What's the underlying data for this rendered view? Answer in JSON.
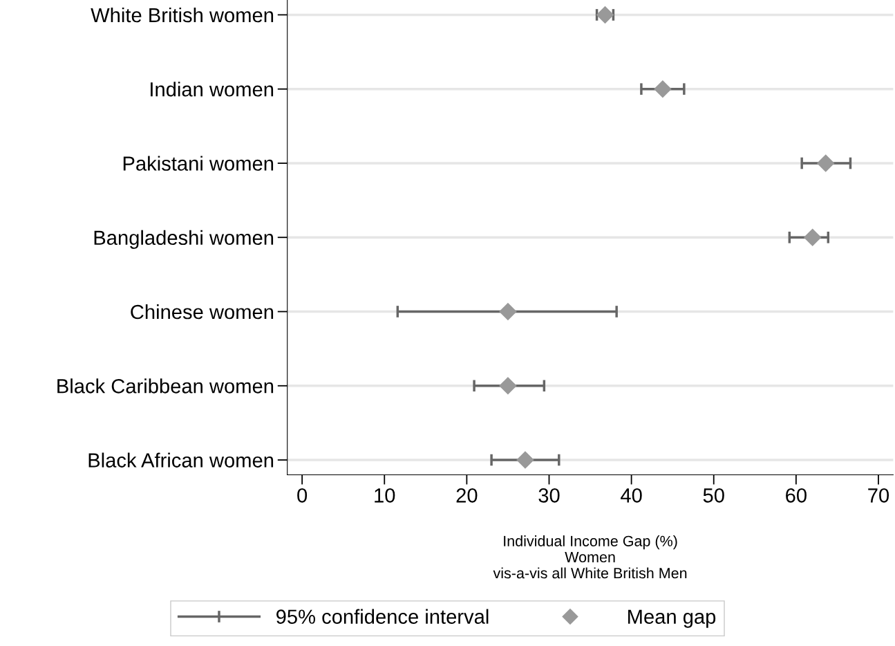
{
  "chart_data": {
    "type": "scatter",
    "orientation": "horizontal",
    "xlabel": "Individual Income Gap (%)\nWomen\nvis-a-vis all White British Men",
    "categories": [
      "White British women",
      "Indian women",
      "Pakistani women",
      "Bangladeshi women",
      "Chinese women",
      "Black Caribbean women",
      "Black African women"
    ],
    "series": [
      {
        "name": "Mean gap",
        "color": "#999999",
        "marker": "diamond",
        "values": [
          36.8,
          43.8,
          63.6,
          62.0,
          25.0,
          25.0,
          27.1
        ],
        "errors": [
          [
            35.8,
            37.8
          ],
          [
            41.2,
            46.4
          ],
          [
            60.7,
            66.6
          ],
          [
            59.2,
            63.9
          ],
          [
            11.6,
            38.2
          ],
          [
            20.9,
            29.4
          ],
          [
            23.0,
            31.2
          ]
        ]
      }
    ],
    "annotations": [
      "95% confidence interval"
    ],
    "xlim": [
      -1.8,
      71.8
    ],
    "xticks": [
      0,
      10,
      20,
      30,
      40,
      50,
      60,
      70
    ],
    "grid": "y",
    "legend": "bottom"
  }
}
